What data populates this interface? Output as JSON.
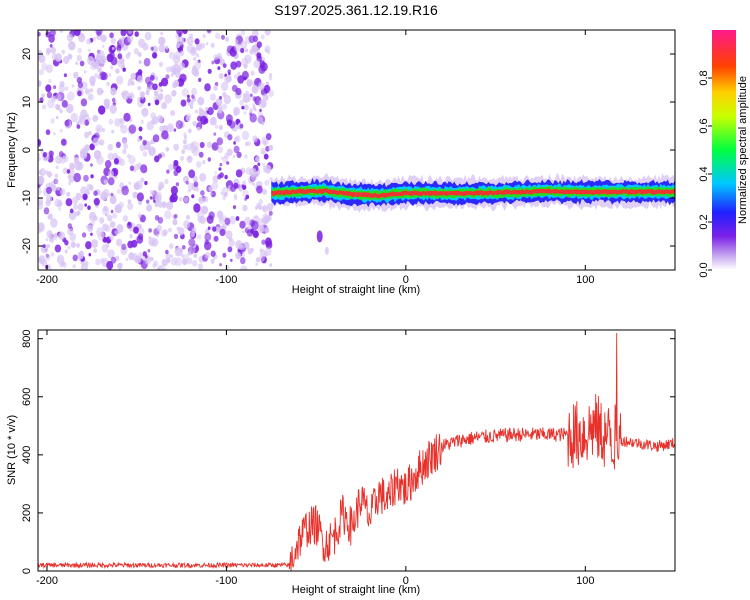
{
  "title": "S197.2025.361.12.19.R16",
  "colors": {
    "snr_line": "#e8312b",
    "ridge_outer": "#2a2aff",
    "ridge_mid": "#22dd22",
    "ridge_core": "#ee3333",
    "noise_strong": "#7a1fe0",
    "noise_weak": "#d8c4f4"
  },
  "chart_data": [
    {
      "type": "heatmap",
      "xlabel": "Height of straight line (km)",
      "ylabel": "Frequency (Hz)",
      "xlim": [
        -205,
        150
      ],
      "ylim": [
        -25,
        25
      ],
      "x_ticks": [
        -200,
        -100,
        0,
        100
      ],
      "y_ticks": [
        -20,
        -10,
        0,
        10,
        20
      ],
      "colorbar": {
        "label": "Normalized spectral amplitude",
        "ticks": [
          0.0,
          0.2,
          0.4,
          0.6,
          0.8
        ],
        "range": [
          0,
          1
        ]
      },
      "noise_region": {
        "x_range": [
          -205,
          -75
        ],
        "y_range": [
          -25,
          25
        ]
      },
      "ridge": {
        "x": [
          -75,
          -60,
          -45,
          -30,
          -15,
          0,
          20,
          40,
          60,
          80,
          100,
          120,
          150
        ],
        "frequency_hz": [
          -9,
          -8.7,
          -8.5,
          -9.2,
          -9.5,
          -9,
          -9,
          -9,
          -8.8,
          -8.6,
          -8.8,
          -8.7,
          -8.7
        ]
      },
      "spot": {
        "x": -48,
        "frequency_hz": -18
      }
    },
    {
      "type": "line",
      "xlabel": "Height of straight line (km)",
      "ylabel": "SNR (10 * v/v)",
      "xlim": [
        -205,
        150
      ],
      "ylim": [
        0,
        830
      ],
      "x_ticks": [
        -200,
        -100,
        0,
        100
      ],
      "y_ticks": [
        0,
        200,
        400,
        600,
        800
      ],
      "series": [
        {
          "x": [
            -205,
            -180,
            -150,
            -120,
            -100,
            -80,
            -65,
            -60,
            -55,
            -50,
            -45,
            -40,
            -35,
            -30,
            -25,
            -20,
            -15,
            -10,
            -5,
            0,
            5,
            10,
            15,
            20,
            30,
            40,
            60,
            80,
            95,
            100,
            105,
            110,
            113,
            116,
            120,
            130,
            140,
            150
          ],
          "values": [
            20,
            20,
            20,
            20,
            20,
            20,
            20,
            100,
            150,
            160,
            90,
            120,
            200,
            150,
            250,
            180,
            270,
            240,
            310,
            280,
            330,
            370,
            400,
            430,
            450,
            460,
            470,
            470,
            470,
            475,
            500,
            470,
            460,
            460,
            450,
            440,
            430,
            440
          ]
        }
      ]
    }
  ]
}
